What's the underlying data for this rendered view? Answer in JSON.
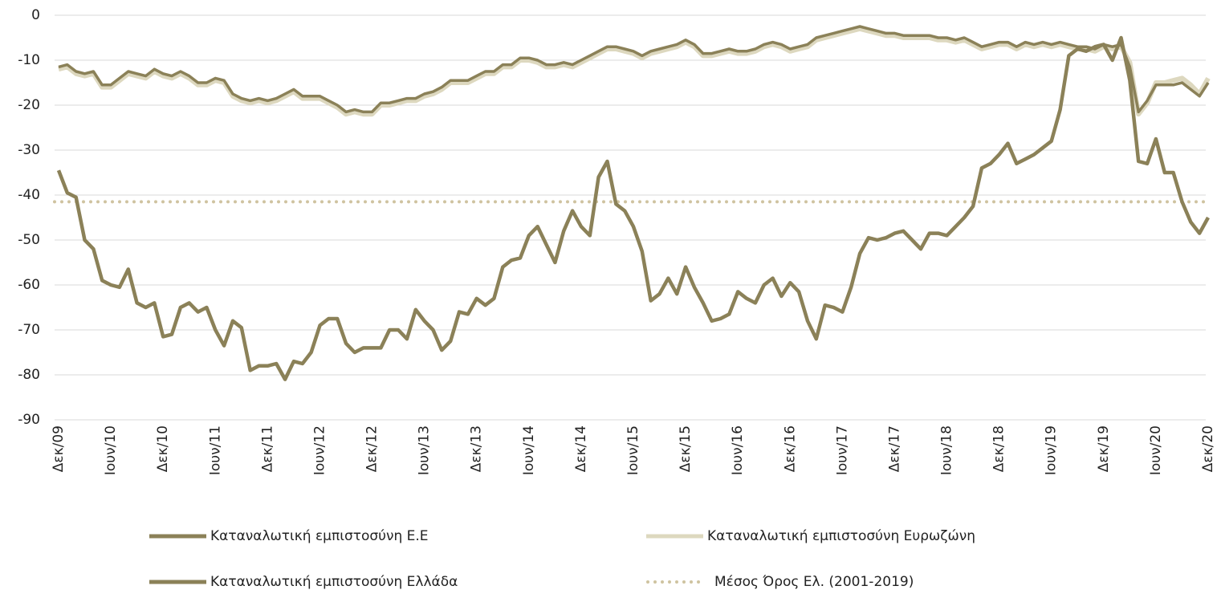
{
  "chart_data": {
    "type": "line",
    "categories": [
      "Δεκ/09",
      null,
      null,
      null,
      null,
      null,
      "Ιουν/10",
      null,
      null,
      null,
      null,
      null,
      "Δεκ/10",
      null,
      null,
      null,
      null,
      null,
      "Ιουν/11",
      null,
      null,
      null,
      null,
      null,
      "Δεκ/11",
      null,
      null,
      null,
      null,
      null,
      "Ιουν/12",
      null,
      null,
      null,
      null,
      null,
      "Δεκ/12",
      null,
      null,
      null,
      null,
      null,
      "Ιουν/13",
      null,
      null,
      null,
      null,
      null,
      "Δεκ/13",
      null,
      null,
      null,
      null,
      null,
      "Ιουν/14",
      null,
      null,
      null,
      null,
      null,
      "Δεκ/14",
      null,
      null,
      null,
      null,
      null,
      "Ιουν/15",
      null,
      null,
      null,
      null,
      null,
      "Δεκ/15",
      null,
      null,
      null,
      null,
      null,
      "Ιουν/16",
      null,
      null,
      null,
      null,
      null,
      "Δεκ/16",
      null,
      null,
      null,
      null,
      null,
      "Ιουν/17",
      null,
      null,
      null,
      null,
      null,
      "Δεκ/17",
      null,
      null,
      null,
      null,
      null,
      "Ιουν/18",
      null,
      null,
      null,
      null,
      null,
      "Δεκ/18",
      null,
      null,
      null,
      null,
      null,
      "Ιουν/19",
      null,
      null,
      null,
      null,
      null,
      "Δεκ/19",
      null,
      null,
      null,
      null,
      null,
      "Ιουν/20",
      null,
      null,
      null,
      null,
      null,
      "Δεκ/20"
    ],
    "series": [
      {
        "name": "Καταναλωτική εμπιστοσύνη Ε.Ε",
        "color": "#8b8158",
        "values": [
          -11.5,
          -11,
          -12.5,
          -13,
          -12.5,
          -15.5,
          -15.5,
          -14,
          -12.5,
          -13,
          -13.5,
          -12,
          -13,
          -13.5,
          -12.5,
          -13.5,
          -15,
          -15,
          -14,
          -14.5,
          -17.5,
          -18.5,
          -19,
          -18.5,
          -19,
          -18.5,
          -17.5,
          -16.5,
          -18,
          -18,
          -18,
          -19,
          -20,
          -21.5,
          -21,
          -21.5,
          -21.5,
          -19.5,
          -19.5,
          -19,
          -18.5,
          -18.5,
          -17.5,
          -17,
          -16,
          -14.5,
          -14.5,
          -14.5,
          -13.5,
          -12.5,
          -12.5,
          -11,
          -11,
          -9.5,
          -9.5,
          -10,
          -11,
          -11,
          -10.5,
          -11,
          -10,
          -9,
          -8,
          -7,
          -7,
          -7.5,
          -8,
          -9,
          -8,
          -7.5,
          -7,
          -6.5,
          -5.5,
          -6.5,
          -8.5,
          -8.5,
          -8,
          -7.5,
          -8,
          -8,
          -7.5,
          -6.5,
          -6,
          -6.5,
          -7.5,
          -7,
          -6.5,
          -5,
          -4.5,
          -4,
          -3.5,
          -3,
          -2.5,
          -3,
          -3.5,
          -4,
          -4,
          -4.5,
          -4.5,
          -4.5,
          -4.5,
          -5,
          -5,
          -5.5,
          -5,
          -6,
          -7,
          -6.5,
          -6,
          -6,
          -7,
          -6,
          -6.5,
          -6,
          -6.5,
          -6,
          -6.5,
          -7,
          -7,
          -7.5,
          -6.5,
          -7,
          -6.5,
          -11.5,
          -21.5,
          -19,
          -15.5,
          -15.5,
          -15.5,
          -15,
          -16.5,
          -18,
          -15
        ]
      },
      {
        "name": "Καταναλωτική εμπιστοσύνη Ευρωζώνη",
        "color": "#ddd8bf",
        "values": [
          -12,
          -11.5,
          -13,
          -13.5,
          -13,
          -16,
          -16,
          -14.5,
          -13,
          -13.5,
          -14,
          -12.5,
          -13.5,
          -14,
          -13,
          -14,
          -15.5,
          -15.5,
          -14.5,
          -15,
          -18,
          -19,
          -19.5,
          -19,
          -19.5,
          -19,
          -18,
          -17,
          -18.5,
          -18.5,
          -18.5,
          -19.5,
          -20.5,
          -22,
          -21.5,
          -22,
          -22,
          -20,
          -20,
          -19.5,
          -19,
          -19,
          -18,
          -17.5,
          -16.5,
          -15,
          -15,
          -15,
          -14,
          -13,
          -13,
          -11.5,
          -11.5,
          -10,
          -10,
          -10.5,
          -11.5,
          -11.5,
          -11,
          -11.5,
          -10.5,
          -9.5,
          -8.5,
          -7.5,
          -7.5,
          -8,
          -8.5,
          -9.5,
          -8.5,
          -8,
          -7.5,
          -7,
          -6,
          -7,
          -9,
          -9,
          -8.5,
          -8,
          -8.5,
          -8.5,
          -8,
          -7,
          -6.5,
          -7,
          -8,
          -7.5,
          -7,
          -5.5,
          -5,
          -4.5,
          -4,
          -3.5,
          -3,
          -3.5,
          -4,
          -4.5,
          -4.5,
          -5,
          -5,
          -5,
          -5,
          -5.5,
          -5.5,
          -6,
          -5.5,
          -6.5,
          -7.5,
          -7,
          -6.5,
          -6.5,
          -7.5,
          -6.5,
          -7,
          -6.5,
          -7,
          -6.5,
          -7,
          -7.5,
          -7.5,
          -8,
          -7,
          -7.5,
          -7,
          -10.5,
          -22,
          -19.5,
          -15,
          -15,
          -14.5,
          -14,
          -15.5,
          -17.5,
          -14
        ]
      },
      {
        "name": "Καταναλωτική εμπιστοσύνη Ελλάδα",
        "color": "#8b8158",
        "values": [
          -34.5,
          -39.5,
          -40.5,
          -50,
          -52,
          -59,
          -60,
          -60.5,
          -56.5,
          -64,
          -65,
          -64,
          -71.5,
          -71,
          -65,
          -64,
          -66,
          -65,
          -70,
          -73.5,
          -68,
          -69.5,
          -79,
          -78,
          -78,
          -77.5,
          -81,
          -77,
          -77.5,
          -75,
          -69,
          -67.5,
          -67.5,
          -73,
          -75,
          -74,
          -74,
          -74,
          -70,
          -70,
          -72,
          -65.5,
          -68,
          -70,
          -74.5,
          -72.5,
          -66,
          -66.5,
          -63,
          -64.5,
          -63,
          -56,
          -54.5,
          -54,
          -49,
          -47,
          -51,
          -55,
          -48,
          -43.5,
          -47,
          -49,
          -36,
          -32.5,
          -42,
          -43.5,
          -47,
          -52.5,
          -63.5,
          -62,
          -58.5,
          -62,
          -56,
          -60.5,
          -64,
          -68,
          -67.5,
          -66.5,
          -61.5,
          -63,
          -64,
          -60,
          -58.5,
          -62.5,
          -59.5,
          -61.5,
          -68,
          -72,
          -64.5,
          -65,
          -66,
          -60.5,
          -53,
          -49.5,
          -50,
          -49.5,
          -48.5,
          -48,
          -50,
          -52,
          -48.5,
          -48.5,
          -49,
          -47,
          -45,
          -42.5,
          -34,
          -33,
          -31,
          -28.5,
          -33,
          -32,
          -31,
          -29.5,
          -28,
          -21,
          -9,
          -7.5,
          -8,
          -7,
          -6.5,
          -10,
          -5,
          -14.5,
          -32.5,
          -33,
          -27.5,
          -35,
          -35,
          -41.5,
          -46,
          -48.5,
          -45
        ]
      }
    ],
    "reference_line": {
      "name": "Μέσος Όρος Ελ. (2001-2019)",
      "value": -41.5,
      "color": "#cfc3a0",
      "style": "dotted"
    },
    "ylim": [
      -90,
      0
    ],
    "yticks": [
      0,
      -10,
      -20,
      -30,
      -40,
      -50,
      -60,
      -70,
      -80,
      -90
    ],
    "grid": true
  }
}
